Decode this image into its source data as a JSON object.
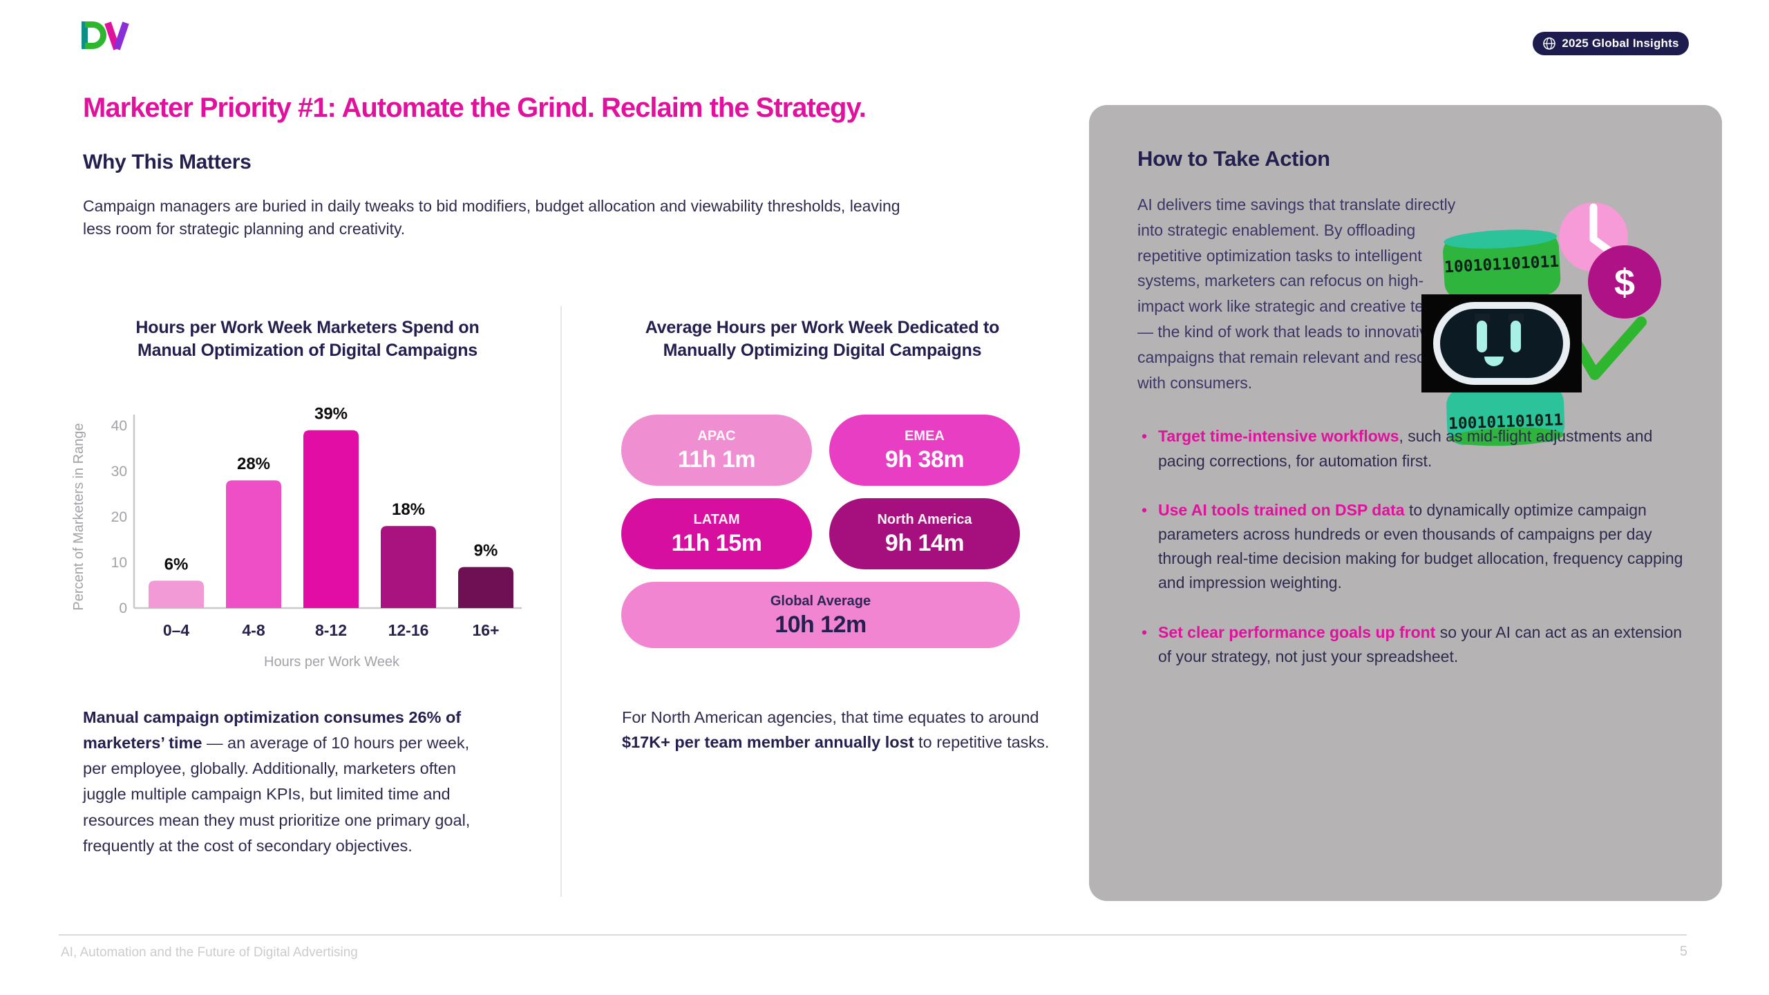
{
  "header": {
    "logo": "DV",
    "badge": {
      "label": "2025 Global Insights",
      "icon": "globe"
    }
  },
  "title": "Marketer Priority #1: Automate the Grind. Reclaim the Strategy.",
  "why": {
    "heading": "Why This Matters",
    "body": "Campaign managers are buried in daily tweaks to bid modifiers, budget allocation and viewability thresholds, leaving less room for strategic planning and creativity."
  },
  "chart_data": [
    {
      "type": "bar",
      "title": "Hours per Work Week Marketers Spend on Manual Optimization of Digital Campaigns",
      "categories": [
        "0–4",
        "4-8",
        "8-12",
        "12-16",
        "16+"
      ],
      "values": [
        6,
        28,
        39,
        18,
        9
      ],
      "value_labels": [
        "6%",
        "28%",
        "39%",
        "18%",
        "9%"
      ],
      "xlabel": "Hours per Work Week",
      "ylabel": "Percent of Marketers in Range",
      "ylim": [
        0,
        45
      ],
      "yticks": [
        0,
        10,
        20,
        30,
        40
      ],
      "bar_colors": [
        "#f19ad6",
        "#ee4fc6",
        "#e20da4",
        "#a9137f",
        "#6e1053"
      ],
      "grid": false,
      "legend": false
    },
    {
      "type": "kpi-pills",
      "title": "Average Hours per Work Week Dedicated to Manually Optimizing Digital Campaigns",
      "items": [
        {
          "label": "APAC",
          "value": "11h 1m",
          "bg": "#f08ed2",
          "text": "#ffffff"
        },
        {
          "label": "EMEA",
          "value": "9h 38m",
          "bg": "#e73ec3",
          "text": "#ffffff"
        },
        {
          "label": "LATAM",
          "value": "11h 15m",
          "bg": "#d60fa0",
          "text": "#ffffff"
        },
        {
          "label": "North America",
          "value": "9h 14m",
          "bg": "#a6107e",
          "text": "#ffffff"
        },
        {
          "label": "Global Average",
          "value": "10h 12m",
          "bg": "#f185d2",
          "text": "#232050"
        }
      ]
    }
  ],
  "left_note": {
    "bold": "Manual campaign optimization consumes 26% of marketers’ time",
    "rest": " — an average of 10 hours per week, per employee, globally. Additionally, marketers often juggle multiple campaign KPIs, but limited time and resources mean they must prioritize one primary goal, frequently at the cost of secondary objectives."
  },
  "mid_note": {
    "pre": "For North American agencies, that time equates to around ",
    "bold": "$17K+ per team member annually lost",
    "post": " to repetitive tasks."
  },
  "action_panel": {
    "heading": "How to Take Action",
    "body": "AI delivers time savings that translate directly into strategic enablement. By offloading repetitive optimization tasks to intelligent systems, marketers can refocus on high-impact work like strategic and creative testing — the kind of work that leads to innovative campaigns that remain relevant and resonate with consumers.",
    "bullets": [
      {
        "lead": "Target time-intensive workflows",
        "rest": ", such as mid-flight adjustments and pacing corrections, for automation first."
      },
      {
        "lead": "Use AI tools trained on DSP data",
        "rest": " to dynamically optimize campaign parameters across hundreds or even thousands of campaigns per day through real-time decision making for budget allocation, frequency capping and impression weighting."
      },
      {
        "lead": "Set clear performance goals up front",
        "rest": " so your AI can act as an extension of your strategy, not just your spreadsheet."
      }
    ],
    "illustration": {
      "binary_top": "100101101011",
      "binary_bottom": "100101101011",
      "dollar": "$",
      "clock_color": "#f79ad8",
      "dollar_color": "#ae1286",
      "green": "#2fb62f"
    }
  },
  "footer": {
    "left": "AI, Automation and the Future of Digital Advertising",
    "page": "5"
  },
  "colors": {
    "magenta": "#e0119c",
    "navy": "#232050",
    "panel": "#b5b3b4"
  }
}
